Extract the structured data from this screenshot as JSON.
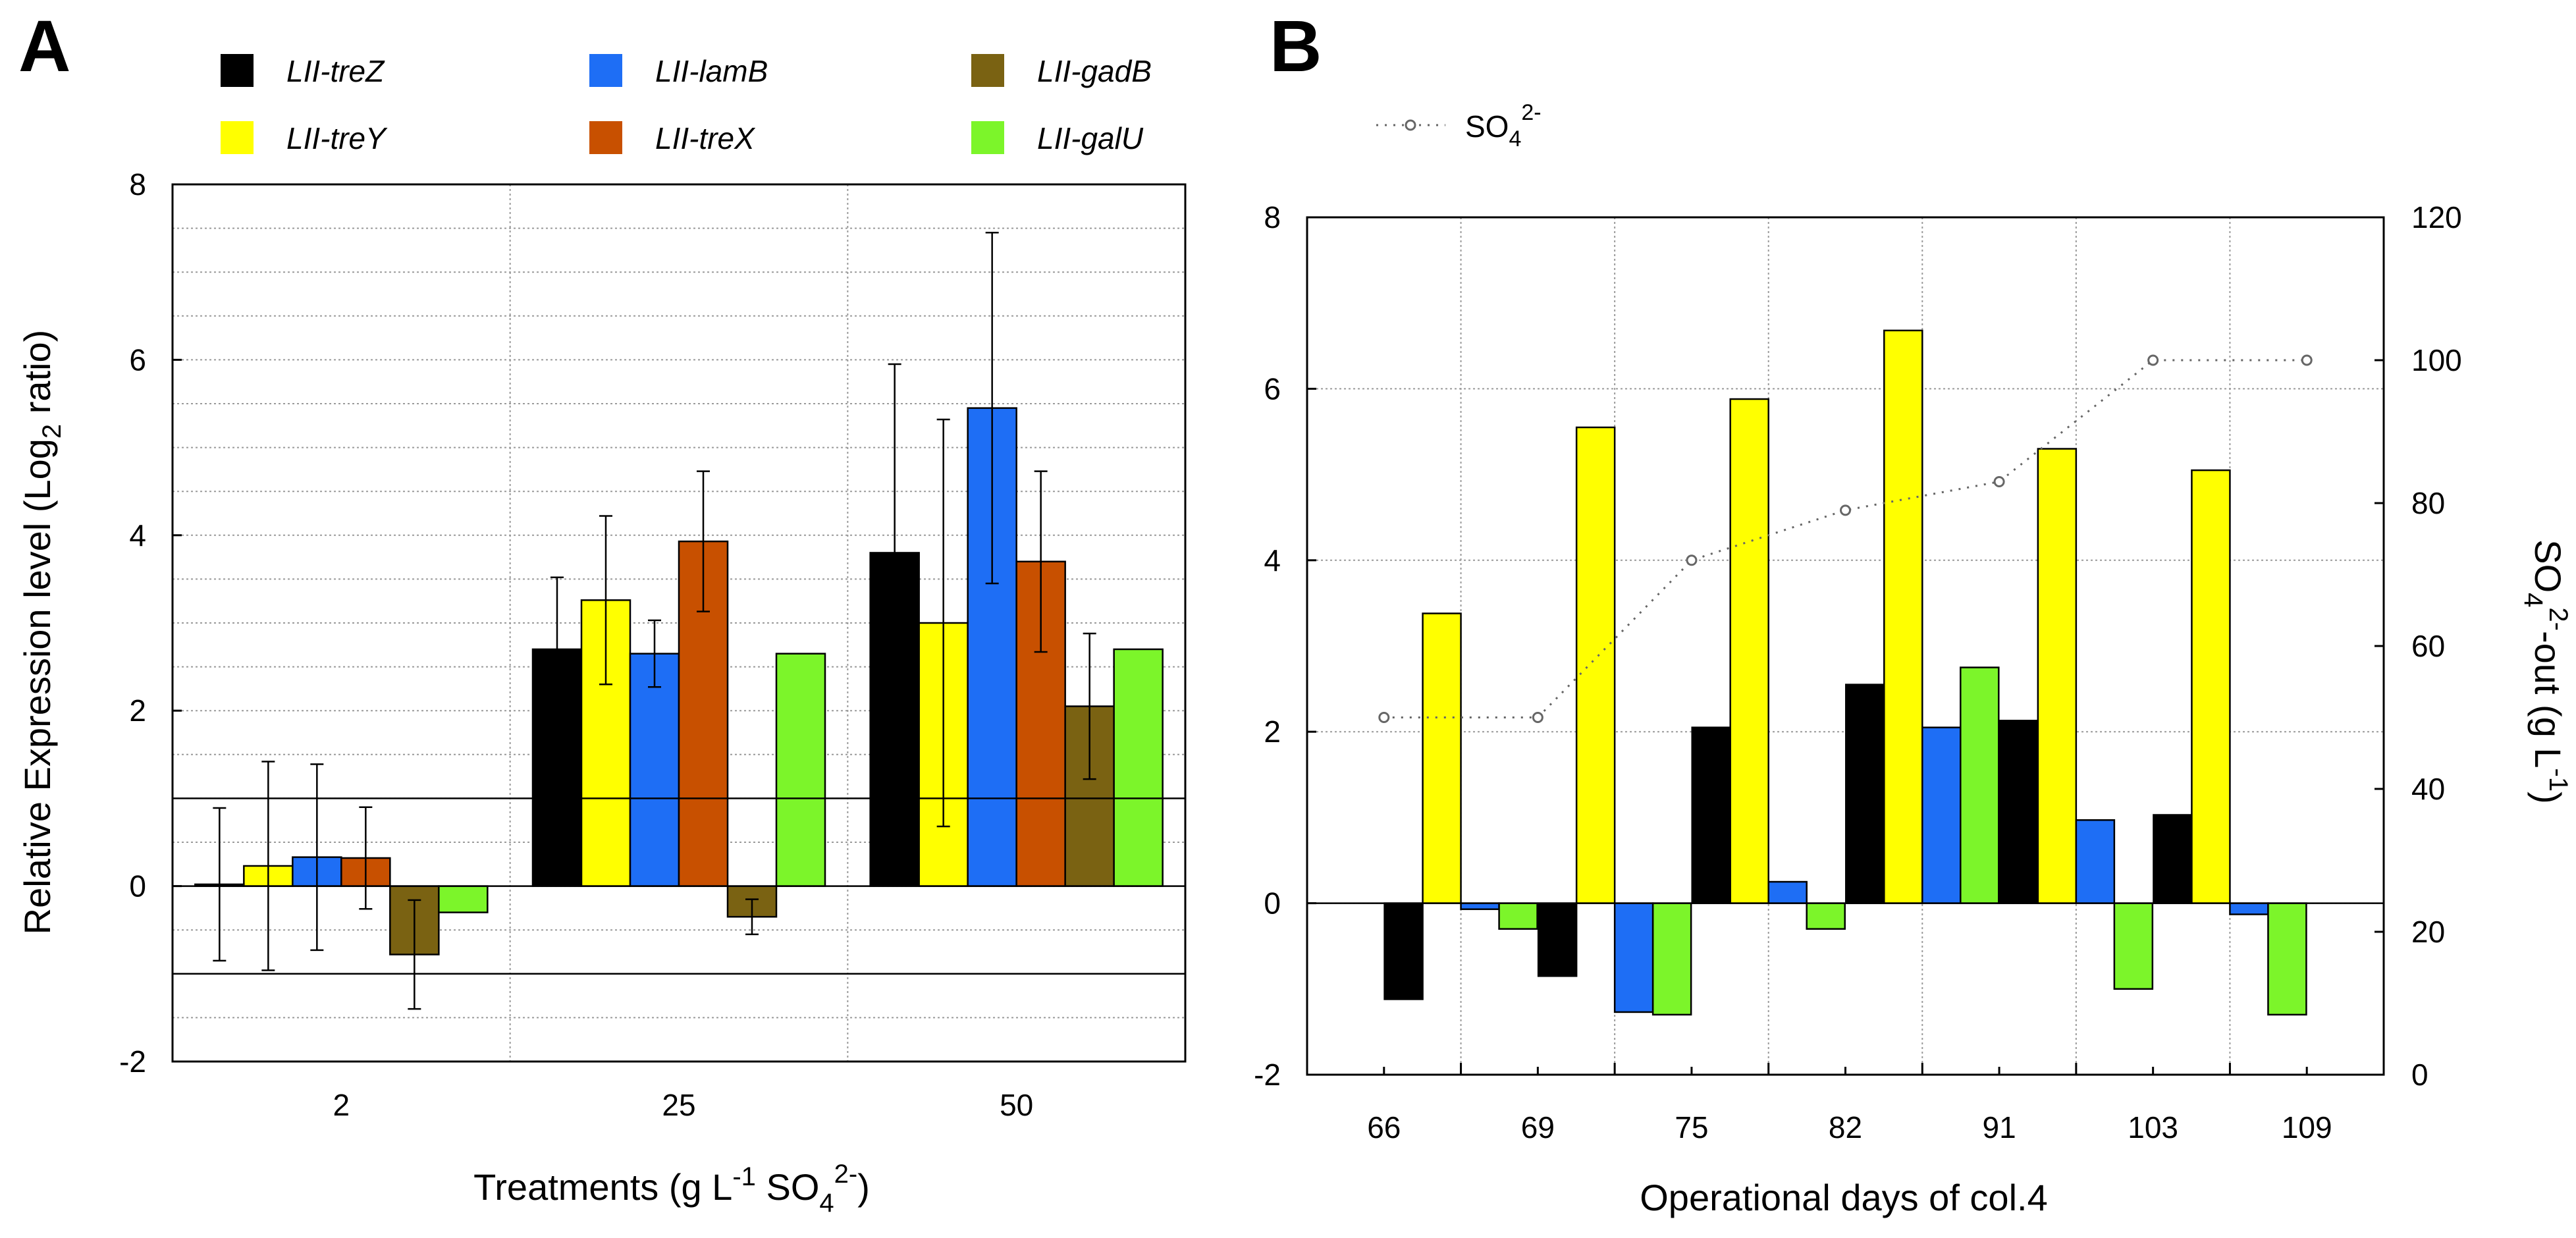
{
  "colors": {
    "LII-treZ": "#000000",
    "LII-treY": "#ffff00",
    "LII-lamB": "#1e6ef5",
    "LII-treX": "#c85000",
    "LII-gadB": "#7a6212",
    "LII-galU": "#7cf52a",
    "so4_line": "#666666"
  },
  "legend": {
    "entries": [
      {
        "label": "LII-treZ",
        "color": "#000000"
      },
      {
        "label": "LII-lamB",
        "color": "#1e6ef5"
      },
      {
        "label": "LII-gadB",
        "color": "#7a6212"
      },
      {
        "label": "LII-treY",
        "color": "#ffff00"
      },
      {
        "label": "LII-treX",
        "color": "#c85000"
      },
      {
        "label": "LII-galU",
        "color": "#7cf52a"
      }
    ],
    "so4_label": "SO",
    "so4_sub": "4",
    "so4_sup": "2-"
  },
  "chart_data": [
    {
      "panel": "A",
      "type": "bar",
      "xlabel": {
        "pre": "Treatments (g L",
        "sup1": "-1",
        "mid": " SO",
        "sub": "4",
        "sup2": "2-",
        "post": ")"
      },
      "ylabel": {
        "pre": "Relative Expression level (Log",
        "sub": "2",
        "post": " ratio)"
      },
      "ylim": [
        -2,
        8
      ],
      "yticks": [
        -2,
        0,
        2,
        4,
        6,
        8
      ],
      "categories": [
        "2",
        "25",
        "50"
      ],
      "reference_lines": [
        1,
        0,
        -1
      ],
      "series": [
        {
          "name": "LII-treZ",
          "values": [
            0.02,
            2.7,
            3.8
          ],
          "errors": [
            0.87,
            0.82,
            2.15
          ]
        },
        {
          "name": "LII-treY",
          "values": [
            0.23,
            3.26,
            3.0
          ],
          "errors": [
            1.19,
            0.96,
            2.32
          ]
        },
        {
          "name": "LII-lamB",
          "values": [
            0.33,
            2.65,
            5.45
          ],
          "errors": [
            1.06,
            0.38,
            2.0
          ]
        },
        {
          "name": "LII-treX",
          "values": [
            0.32,
            3.93,
            3.7
          ],
          "errors": [
            0.58,
            0.8,
            1.03
          ]
        },
        {
          "name": "LII-gadB",
          "values": [
            -0.78,
            -0.35,
            2.05
          ],
          "errors": [
            0.62,
            0.2,
            0.83
          ]
        },
        {
          "name": "LII-galU",
          "values": [
            -0.3,
            2.65,
            2.7
          ],
          "errors": [
            null,
            null,
            null
          ]
        }
      ]
    },
    {
      "panel": "B",
      "type": "bar",
      "xlabel": "Operational days of col.4",
      "ylim": [
        -2,
        8
      ],
      "yticks": [
        -2,
        0,
        2,
        4,
        6,
        8
      ],
      "y2label": {
        "pre": "SO",
        "sub": "4",
        "sup": "2-",
        "mid": "-out (g L",
        "sup2": "-1",
        "post": ")"
      },
      "y2lim": [
        0,
        120
      ],
      "y2ticks": [
        0,
        20,
        40,
        60,
        80,
        100,
        120
      ],
      "categories": [
        "66",
        "69",
        "75",
        "82",
        "91",
        "103",
        "109"
      ],
      "series": [
        {
          "name": "LII-treZ",
          "values": [
            null,
            -1.12,
            -0.85,
            2.05,
            2.55,
            2.13,
            1.03
          ]
        },
        {
          "name": "LII-treY",
          "values": [
            null,
            3.38,
            5.55,
            5.88,
            6.68,
            5.3,
            5.05
          ]
        },
        {
          "name": "LII-lamB",
          "values": [
            null,
            -0.07,
            -1.27,
            0.25,
            2.05,
            0.97,
            -0.13
          ]
        },
        {
          "name": "LII-galU",
          "values": [
            null,
            -0.3,
            -1.3,
            -0.3,
            2.75,
            -1.0,
            -1.3
          ]
        }
      ],
      "so4_out": {
        "name": "SO4 2-",
        "values": [
          50,
          50,
          72,
          79,
          83,
          100,
          100
        ]
      }
    }
  ]
}
